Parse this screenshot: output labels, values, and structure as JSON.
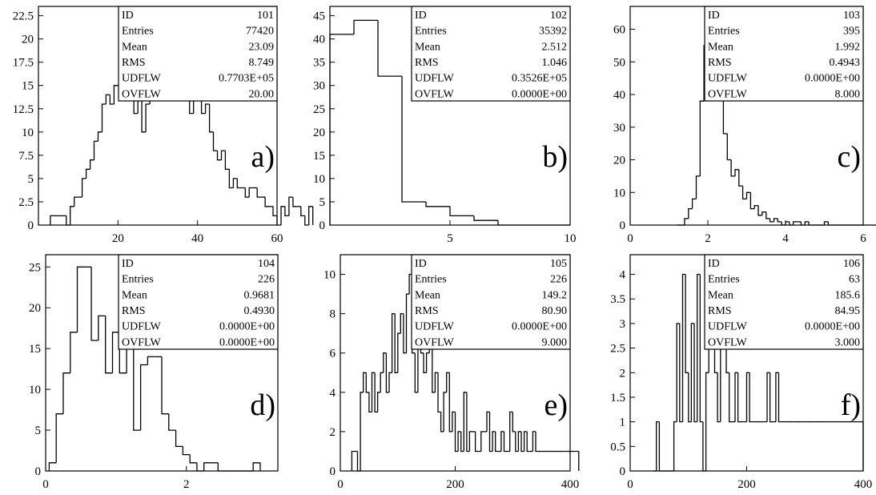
{
  "chart_data": [
    {
      "type": "bar",
      "panel_label": "a)",
      "xlim": [
        0,
        60
      ],
      "ylim": [
        0,
        23.5
      ],
      "xticks": [
        20,
        40,
        60
      ],
      "xtick_labels": [
        "20",
        "40",
        "60"
      ],
      "yticks": [
        0,
        2.5,
        5,
        7.5,
        10,
        12.5,
        15,
        17.5,
        20,
        22.5
      ],
      "ytick_labels": [
        "0",
        "2.5",
        "5",
        "7.5",
        "10",
        "12.5",
        "15",
        "17.5",
        "20",
        "22.5"
      ],
      "bin_start": 3,
      "bin_width": 1,
      "values": [
        1,
        1,
        1,
        1,
        0,
        2,
        3,
        3,
        5,
        6,
        7,
        9,
        10,
        13,
        14,
        13,
        15,
        15,
        17,
        16,
        14,
        12,
        15,
        10,
        13,
        20,
        22,
        20,
        21,
        17,
        14,
        16,
        18,
        19,
        16,
        12,
        18,
        15,
        12,
        13,
        10,
        8,
        7,
        8,
        6,
        4,
        5,
        4,
        4,
        3,
        4,
        4,
        3,
        3,
        2,
        2,
        1,
        0,
        2,
        1,
        3,
        2,
        2,
        1,
        0,
        2
      ],
      "stats": [
        {
          "label": "ID",
          "value": "101"
        },
        {
          "label": "Entries",
          "value": "77420"
        },
        {
          "label": "Mean",
          "value": "23.09"
        },
        {
          "label": "RMS",
          "value": "8.749"
        },
        {
          "label": "UDFLW",
          "value": "0.7703E+05"
        },
        {
          "label": "OVFLW",
          "value": "20.00"
        }
      ]
    },
    {
      "type": "bar",
      "panel_label": "b)",
      "xlim": [
        0,
        10
      ],
      "ylim": [
        0,
        47
      ],
      "xticks": [
        5,
        10
      ],
      "xtick_labels": [
        "5",
        "10"
      ],
      "yticks": [
        0,
        5,
        10,
        15,
        20,
        25,
        30,
        35,
        40,
        45
      ],
      "ytick_labels": [
        "0",
        "5",
        "10",
        "15",
        "20",
        "25",
        "30",
        "35",
        "40",
        "45"
      ],
      "bin_start": 0,
      "bin_width": 1,
      "values": [
        41,
        44,
        32,
        5,
        4,
        2,
        1,
        0,
        0,
        0
      ],
      "stats": [
        {
          "label": "ID",
          "value": "102"
        },
        {
          "label": "Entries",
          "value": "35392"
        },
        {
          "label": "Mean",
          "value": "2.512"
        },
        {
          "label": "RMS",
          "value": "1.046"
        },
        {
          "label": "UDFLW",
          "value": "0.3526E+05"
        },
        {
          "label": "OVFLW",
          "value": "0.0000E+00"
        }
      ]
    },
    {
      "type": "bar",
      "panel_label": "c)",
      "xlim": [
        0,
        6
      ],
      "ylim": [
        0,
        67
      ],
      "xticks": [
        0,
        2,
        4,
        6
      ],
      "xtick_labels": [
        "0",
        "2",
        "4",
        "6"
      ],
      "yticks": [
        0,
        10,
        20,
        30,
        40,
        50,
        60
      ],
      "ytick_labels": [
        "0",
        "10",
        "20",
        "30",
        "40",
        "50",
        "60"
      ],
      "bin_start": 1.2,
      "bin_width": 0.1,
      "values": [
        0,
        0,
        2,
        5,
        8,
        15,
        38,
        55,
        62,
        57,
        47,
        40,
        28,
        20,
        15,
        17,
        12,
        8,
        10,
        5,
        6,
        3,
        4,
        2,
        1,
        2,
        1,
        0,
        1,
        0,
        1,
        1,
        0,
        1,
        0,
        0,
        0,
        0,
        1,
        0,
        0,
        0,
        0,
        0,
        0,
        0,
        0,
        0,
        0,
        0,
        0,
        0,
        0,
        0,
        0,
        0,
        0,
        0,
        0,
        0,
        0,
        0,
        0,
        0,
        0,
        0,
        0,
        0,
        0,
        0,
        0,
        0,
        0,
        0,
        0,
        0,
        0,
        0,
        0,
        0
      ],
      "stats": [
        {
          "label": "ID",
          "value": "103"
        },
        {
          "label": "Entries",
          "value": "395"
        },
        {
          "label": "Mean",
          "value": "1.992"
        },
        {
          "label": "RMS",
          "value": "0.4943"
        },
        {
          "label": "UDFLW",
          "value": "0.0000E+00"
        },
        {
          "label": "OVFLW",
          "value": "8.000"
        }
      ]
    },
    {
      "type": "bar",
      "panel_label": "d)",
      "xlim": [
        0,
        3.3
      ],
      "ylim": [
        0,
        26.5
      ],
      "xticks": [
        0,
        2
      ],
      "xtick_labels": [
        "0",
        "2"
      ],
      "yticks": [
        0,
        5,
        10,
        15,
        20,
        25
      ],
      "ytick_labels": [
        "0",
        "5",
        "10",
        "15",
        "20",
        "25"
      ],
      "bin_start": 0.05,
      "bin_width": 0.1,
      "values": [
        1,
        7,
        12,
        17,
        25,
        25,
        16,
        19,
        12,
        17,
        12,
        18,
        5,
        13,
        14,
        14,
        7,
        5,
        3,
        2,
        1,
        0,
        1,
        1,
        0,
        0,
        0,
        0,
        0,
        1
      ],
      "stats": [
        {
          "label": "ID",
          "value": "104"
        },
        {
          "label": "Entries",
          "value": "226"
        },
        {
          "label": "Mean",
          "value": "0.9681"
        },
        {
          "label": "RMS",
          "value": "0.4930"
        },
        {
          "label": "UDFLW",
          "value": "0.0000E+00"
        },
        {
          "label": "OVFLW",
          "value": "0.0000E+00"
        }
      ]
    },
    {
      "type": "bar",
      "panel_label": "e)",
      "xlim": [
        0,
        400
      ],
      "ylim": [
        0,
        11
      ],
      "xticks": [
        0,
        200,
        400
      ],
      "xtick_labels": [
        "0",
        "200",
        "400"
      ],
      "yticks": [
        0,
        2,
        4,
        6,
        8,
        10
      ],
      "ytick_labels": [
        "0",
        "2",
        "4",
        "6",
        "8",
        "10"
      ],
      "bin_start": 20,
      "bin_width": 5,
      "values": [
        1,
        1,
        0,
        4,
        5,
        4,
        3,
        5,
        3,
        4,
        5,
        6,
        4,
        5,
        8,
        5,
        7,
        8,
        6,
        9,
        10,
        6,
        4,
        8,
        6,
        5,
        6,
        7,
        4,
        5,
        3,
        2,
        4,
        5,
        2,
        3,
        1,
        2,
        1,
        4,
        1,
        2,
        2,
        1,
        1,
        2,
        2,
        3,
        1,
        2,
        1,
        1,
        2,
        1,
        1,
        3,
        2,
        1,
        2,
        1,
        2,
        1,
        1,
        2,
        1,
        1,
        1,
        1,
        1,
        1,
        1,
        1,
        1,
        1,
        1,
        1,
        1,
        1,
        1
      ],
      "stats": [
        {
          "label": "ID",
          "value": "105"
        },
        {
          "label": "Entries",
          "value": "226"
        },
        {
          "label": "Mean",
          "value": "149.2"
        },
        {
          "label": "RMS",
          "value": "80.90"
        },
        {
          "label": "UDFLW",
          "value": "0.0000E+00"
        },
        {
          "label": "OVFLW",
          "value": "9.000"
        }
      ]
    },
    {
      "type": "bar",
      "panel_label": "f)",
      "xlim": [
        0,
        400
      ],
      "ylim": [
        0,
        4.4
      ],
      "xticks": [
        0,
        200,
        400
      ],
      "xtick_labels": [
        "0",
        "200",
        "400"
      ],
      "yticks": [
        0,
        0.5,
        1,
        1.5,
        2,
        2.5,
        3,
        3.5,
        4
      ],
      "ytick_labels": [
        "0",
        "0.5",
        "1",
        "1.5",
        "2",
        "2.5",
        "3",
        "3.5",
        "4"
      ],
      "bin_start": 40,
      "bin_width": 5,
      "values": [
        0,
        1,
        0,
        0,
        0,
        0,
        0,
        1,
        3,
        1,
        4,
        2,
        1,
        3,
        1,
        4,
        1,
        0,
        2,
        3,
        3,
        2,
        1,
        4,
        3,
        2,
        1,
        1,
        2,
        1,
        1,
        1,
        2,
        1,
        1,
        1,
        1,
        1,
        1,
        2,
        1,
        1,
        2,
        1,
        1,
        1,
        1,
        1,
        1,
        1,
        1,
        1,
        1,
        1,
        1,
        1,
        1,
        1,
        1,
        1,
        1,
        1,
        1,
        1,
        1,
        1,
        1,
        1,
        1,
        1,
        1,
        1
      ],
      "stats": [
        {
          "label": "ID",
          "value": "106"
        },
        {
          "label": "Entries",
          "value": "63"
        },
        {
          "label": "Mean",
          "value": "185.6"
        },
        {
          "label": "RMS",
          "value": "84.95"
        },
        {
          "label": "UDFLW",
          "value": "0.0000E+00"
        },
        {
          "label": "OVFLW",
          "value": "3.000"
        }
      ]
    }
  ]
}
